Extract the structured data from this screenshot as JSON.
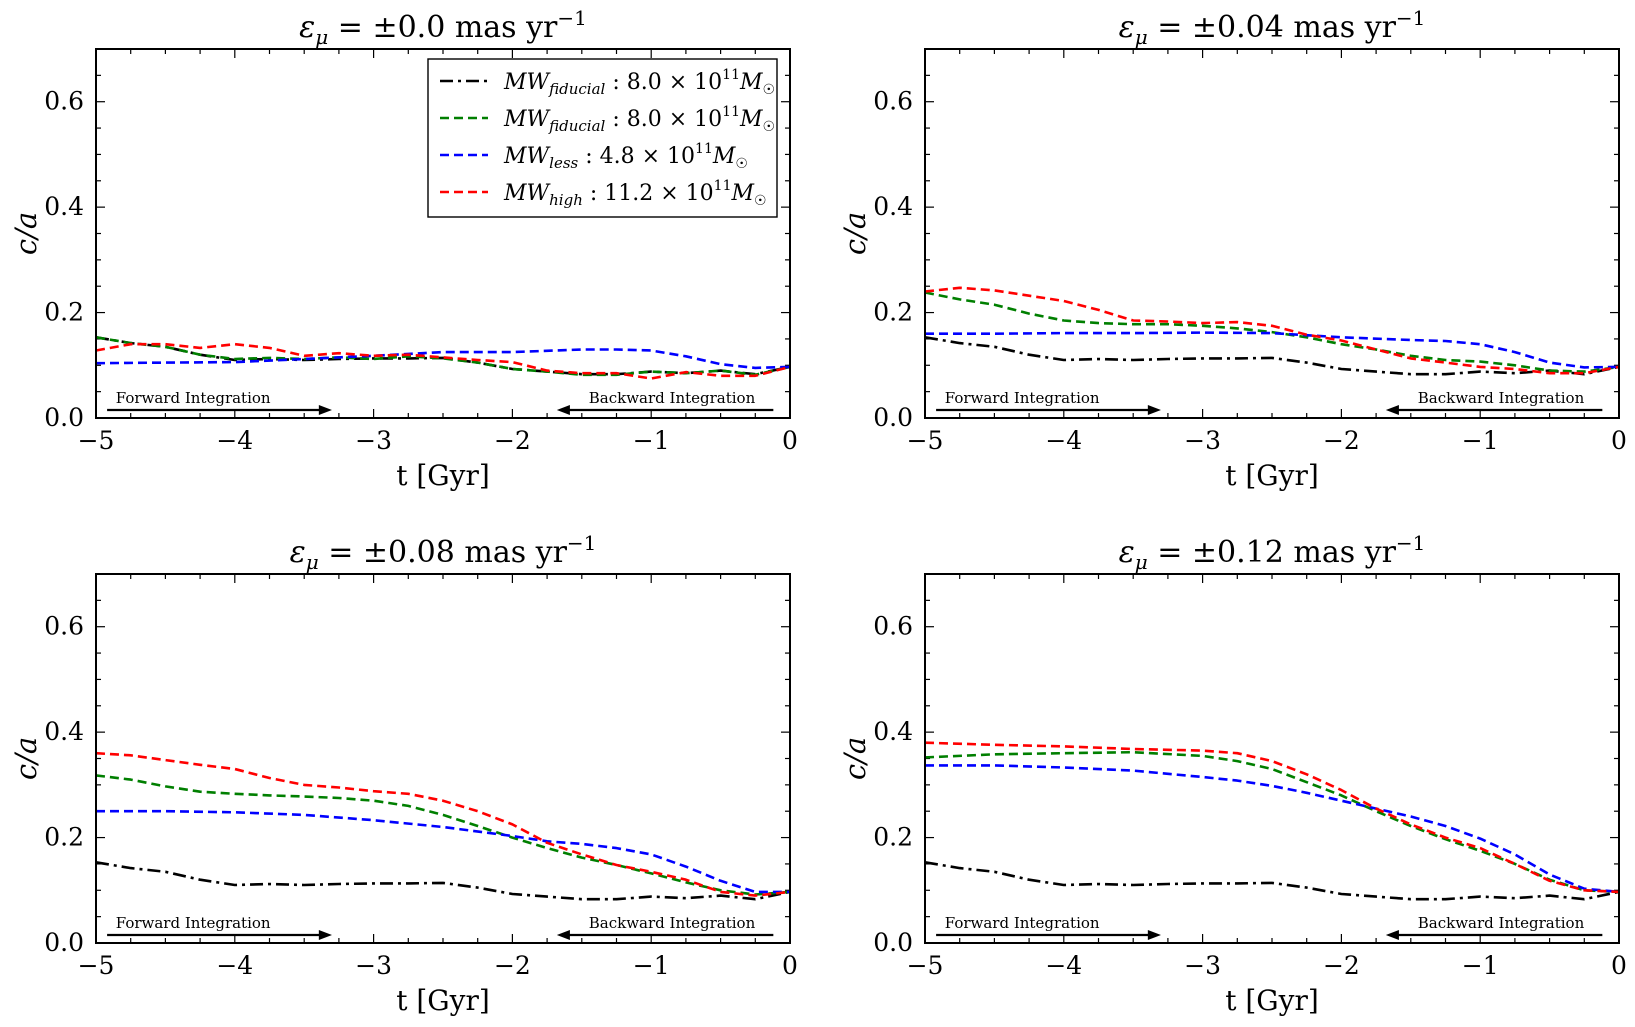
{
  "figure": {
    "xlabel": "t [Gyr]",
    "ylabel": "c/a",
    "legend": [
      {
        "label": "MWfiducial : 8.0 × 10¹¹ M☉",
        "main": "MW",
        "sub": "fiducial",
        "value": ": 8.0 × 10",
        "exp": "11",
        "unit": "M",
        "sun": "☉",
        "color": "#000000",
        "style": "dashdot"
      },
      {
        "label": "MWfiducial : 8.0 × 10¹¹ M☉",
        "main": "MW",
        "sub": "fiducial",
        "value": ": 8.0 × 10",
        "exp": "11",
        "unit": "M",
        "sun": "☉",
        "color": "#007f00",
        "style": "dashed"
      },
      {
        "label": "MWless : 4.8 × 10¹¹ M☉",
        "main": "MW",
        "sub": "less",
        "value": ": 4.8 × 10",
        "exp": "11",
        "unit": "M",
        "sun": "☉",
        "color": "#0000ff",
        "style": "dashed"
      },
      {
        "label": "MWhigh : 11.2 × 10¹¹ M☉",
        "main": "MW",
        "sub": "high",
        "value": ": 11.2 × 10",
        "exp": "11",
        "unit": "M",
        "sun": "☉",
        "color": "#ff0000",
        "style": "dashed"
      }
    ],
    "annotations": {
      "forward": "Forward Integration",
      "backward": "Backward Integration"
    }
  },
  "chart_data": [
    {
      "type": "line",
      "title": "εμ = ±0.0 mas yr⁻¹",
      "title_parts": {
        "eps": "ε",
        "mu": "μ",
        "rest": " = ±0.0 mas yr",
        "exp": "−1"
      },
      "xlabel": "t [Gyr]",
      "ylabel": "c/a",
      "xlim": [
        -5,
        0
      ],
      "ylim": [
        0,
        0.7
      ],
      "xticks": [
        -5,
        -4,
        -3,
        -2,
        -1,
        0
      ],
      "xtick_labels": [
        "−5",
        "−4",
        "−3",
        "−2",
        "−1",
        "0"
      ],
      "yticks": [
        0.0,
        0.2,
        0.4,
        0.6
      ],
      "ytick_labels": [
        "0.0",
        "0.2",
        "0.4",
        "0.6"
      ],
      "show_legend": true,
      "series": [
        {
          "name": "MWfiducial (black)",
          "color": "#000000",
          "style": "dashdot",
          "x": [
            -5,
            -4.75,
            -4.5,
            -4.25,
            -4,
            -3.75,
            -3.5,
            -3.25,
            -3,
            -2.75,
            -2.5,
            -2.25,
            -2,
            -1.75,
            -1.5,
            -1.25,
            -1,
            -0.75,
            -0.5,
            -0.25,
            0
          ],
          "y": [
            0.153,
            0.142,
            0.135,
            0.12,
            0.11,
            0.112,
            0.11,
            0.112,
            0.113,
            0.113,
            0.114,
            0.105,
            0.093,
            0.088,
            0.083,
            0.083,
            0.088,
            0.085,
            0.09,
            0.083,
            0.097
          ]
        },
        {
          "name": "MWfiducial (green)",
          "color": "#007f00",
          "style": "dashed",
          "x": [
            -5,
            -4.75,
            -4.5,
            -4.25,
            -4,
            -3.75,
            -3.5,
            -3.25,
            -3,
            -2.75,
            -2.5,
            -2.25,
            -2,
            -1.75,
            -1.5,
            -1.25,
            -1,
            -0.75,
            -0.5,
            -0.25,
            0
          ],
          "y": [
            0.153,
            0.142,
            0.135,
            0.12,
            0.112,
            0.114,
            0.112,
            0.115,
            0.112,
            0.117,
            0.113,
            0.105,
            0.093,
            0.088,
            0.082,
            0.082,
            0.088,
            0.085,
            0.09,
            0.082,
            0.097
          ]
        },
        {
          "name": "MWless",
          "color": "#0000ff",
          "style": "dashed",
          "x": [
            -5,
            -4.5,
            -4,
            -3.5,
            -3,
            -2.5,
            -2,
            -1.5,
            -1.25,
            -1,
            -0.75,
            -0.5,
            -0.25,
            0
          ],
          "y": [
            0.104,
            0.105,
            0.106,
            0.112,
            0.118,
            0.125,
            0.125,
            0.13,
            0.13,
            0.128,
            0.117,
            0.102,
            0.095,
            0.097
          ]
        },
        {
          "name": "MWhigh",
          "color": "#ff0000",
          "style": "dashed",
          "x": [
            -5,
            -4.75,
            -4.5,
            -4.25,
            -4,
            -3.75,
            -3.5,
            -3.25,
            -3,
            -2.75,
            -2.5,
            -2.25,
            -2,
            -1.75,
            -1.5,
            -1.25,
            -1,
            -0.75,
            -0.5,
            -0.25,
            0
          ],
          "y": [
            0.128,
            0.14,
            0.14,
            0.133,
            0.14,
            0.133,
            0.118,
            0.123,
            0.118,
            0.12,
            0.115,
            0.11,
            0.106,
            0.09,
            0.085,
            0.085,
            0.075,
            0.087,
            0.08,
            0.08,
            0.097
          ]
        }
      ]
    },
    {
      "type": "line",
      "title": "εμ = ±0.04 mas yr⁻¹",
      "title_parts": {
        "eps": "ε",
        "mu": "μ",
        "rest": " = ±0.04 mas yr",
        "exp": "−1"
      },
      "xlabel": "t [Gyr]",
      "ylabel": "c/a",
      "xlim": [
        -5,
        0
      ],
      "ylim": [
        0,
        0.7
      ],
      "xticks": [
        -5,
        -4,
        -3,
        -2,
        -1,
        0
      ],
      "xtick_labels": [
        "−5",
        "−4",
        "−3",
        "−2",
        "−1",
        "0"
      ],
      "yticks": [
        0.0,
        0.2,
        0.4,
        0.6
      ],
      "ytick_labels": [
        "0.0",
        "0.2",
        "0.4",
        "0.6"
      ],
      "show_legend": false,
      "series": [
        {
          "name": "MWfiducial (black)",
          "color": "#000000",
          "style": "dashdot",
          "x": [
            -5,
            -4.75,
            -4.5,
            -4.25,
            -4,
            -3.75,
            -3.5,
            -3.25,
            -3,
            -2.75,
            -2.5,
            -2.25,
            -2,
            -1.75,
            -1.5,
            -1.25,
            -1,
            -0.75,
            -0.5,
            -0.25,
            0
          ],
          "y": [
            0.153,
            0.142,
            0.135,
            0.12,
            0.11,
            0.112,
            0.11,
            0.112,
            0.113,
            0.113,
            0.114,
            0.105,
            0.093,
            0.088,
            0.083,
            0.083,
            0.088,
            0.085,
            0.09,
            0.083,
            0.097
          ]
        },
        {
          "name": "MWfiducial (green)",
          "color": "#007f00",
          "style": "dashed",
          "x": [
            -5,
            -4.75,
            -4.5,
            -4.25,
            -4,
            -3.75,
            -3.5,
            -3.25,
            -3,
            -2.75,
            -2.5,
            -2.25,
            -2,
            -1.75,
            -1.5,
            -1.25,
            -1,
            -0.75,
            -0.5,
            -0.25,
            0
          ],
          "y": [
            0.238,
            0.225,
            0.215,
            0.198,
            0.185,
            0.18,
            0.178,
            0.178,
            0.175,
            0.17,
            0.163,
            0.153,
            0.14,
            0.13,
            0.118,
            0.11,
            0.107,
            0.1,
            0.09,
            0.088,
            0.097
          ]
        },
        {
          "name": "MWless",
          "color": "#0000ff",
          "style": "dashed",
          "x": [
            -5,
            -4.5,
            -4,
            -3.5,
            -3,
            -2.5,
            -2,
            -1.5,
            -1.25,
            -1,
            -0.75,
            -0.5,
            -0.25,
            0
          ],
          "y": [
            0.16,
            0.16,
            0.161,
            0.161,
            0.162,
            0.161,
            0.153,
            0.148,
            0.146,
            0.14,
            0.125,
            0.105,
            0.096,
            0.097
          ]
        },
        {
          "name": "MWhigh",
          "color": "#ff0000",
          "style": "dashed",
          "x": [
            -5,
            -4.75,
            -4.5,
            -4.25,
            -4,
            -3.75,
            -3.5,
            -3.25,
            -3,
            -2.75,
            -2.5,
            -2.25,
            -2,
            -1.75,
            -1.5,
            -1.25,
            -1,
            -0.75,
            -0.5,
            -0.25,
            0
          ],
          "y": [
            0.24,
            0.247,
            0.242,
            0.232,
            0.222,
            0.205,
            0.185,
            0.183,
            0.18,
            0.182,
            0.175,
            0.158,
            0.147,
            0.13,
            0.113,
            0.105,
            0.097,
            0.093,
            0.085,
            0.085,
            0.097
          ]
        }
      ]
    },
    {
      "type": "line",
      "title": "εμ = ±0.08 mas yr⁻¹",
      "title_parts": {
        "eps": "ε",
        "mu": "μ",
        "rest": " = ±0.08 mas yr",
        "exp": "−1"
      },
      "xlabel": "t [Gyr]",
      "ylabel": "c/a",
      "xlim": [
        -5,
        0
      ],
      "ylim": [
        0,
        0.7
      ],
      "xticks": [
        -5,
        -4,
        -3,
        -2,
        -1,
        0
      ],
      "xtick_labels": [
        "−5",
        "−4",
        "−3",
        "−2",
        "−1",
        "0"
      ],
      "yticks": [
        0.0,
        0.2,
        0.4,
        0.6
      ],
      "ytick_labels": [
        "0.0",
        "0.2",
        "0.4",
        "0.6"
      ],
      "show_legend": false,
      "series": [
        {
          "name": "MWfiducial (black)",
          "color": "#000000",
          "style": "dashdot",
          "x": [
            -5,
            -4.75,
            -4.5,
            -4.25,
            -4,
            -3.75,
            -3.5,
            -3.25,
            -3,
            -2.75,
            -2.5,
            -2.25,
            -2,
            -1.75,
            -1.5,
            -1.25,
            -1,
            -0.75,
            -0.5,
            -0.25,
            0
          ],
          "y": [
            0.153,
            0.142,
            0.135,
            0.12,
            0.11,
            0.112,
            0.11,
            0.112,
            0.113,
            0.113,
            0.114,
            0.105,
            0.093,
            0.088,
            0.083,
            0.083,
            0.088,
            0.085,
            0.09,
            0.083,
            0.097
          ]
        },
        {
          "name": "MWfiducial (green)",
          "color": "#007f00",
          "style": "dashed",
          "x": [
            -5,
            -4.75,
            -4.5,
            -4.25,
            -4,
            -3.75,
            -3.5,
            -3.25,
            -3,
            -2.75,
            -2.5,
            -2.25,
            -2,
            -1.75,
            -1.5,
            -1.25,
            -1,
            -0.75,
            -0.5,
            -0.25,
            0
          ],
          "y": [
            0.318,
            0.31,
            0.297,
            0.287,
            0.283,
            0.28,
            0.278,
            0.275,
            0.27,
            0.26,
            0.243,
            0.222,
            0.2,
            0.18,
            0.162,
            0.148,
            0.132,
            0.115,
            0.1,
            0.092,
            0.097
          ]
        },
        {
          "name": "MWless",
          "color": "#0000ff",
          "style": "dashed",
          "x": [
            -5,
            -4.5,
            -4,
            -3.5,
            -3,
            -2.5,
            -2,
            -1.75,
            -1.5,
            -1.25,
            -1,
            -0.75,
            -0.5,
            -0.25,
            0
          ],
          "y": [
            0.25,
            0.25,
            0.248,
            0.243,
            0.233,
            0.22,
            0.203,
            0.193,
            0.188,
            0.18,
            0.168,
            0.145,
            0.118,
            0.097,
            0.097
          ]
        },
        {
          "name": "MWhigh",
          "color": "#ff0000",
          "style": "dashed",
          "x": [
            -5,
            -4.75,
            -4.5,
            -4.25,
            -4,
            -3.75,
            -3.5,
            -3.25,
            -3,
            -2.75,
            -2.5,
            -2.25,
            -2,
            -1.75,
            -1.5,
            -1.25,
            -1,
            -0.75,
            -0.5,
            -0.25,
            0
          ],
          "y": [
            0.36,
            0.356,
            0.347,
            0.338,
            0.33,
            0.313,
            0.3,
            0.295,
            0.288,
            0.283,
            0.27,
            0.25,
            0.225,
            0.19,
            0.168,
            0.148,
            0.135,
            0.12,
            0.097,
            0.09,
            0.097
          ]
        }
      ]
    },
    {
      "type": "line",
      "title": "εμ = ±0.12 mas yr⁻¹",
      "title_parts": {
        "eps": "ε",
        "mu": "μ",
        "rest": " = ±0.12 mas yr",
        "exp": "−1"
      },
      "xlabel": "t [Gyr]",
      "ylabel": "c/a",
      "xlim": [
        -5,
        0
      ],
      "ylim": [
        0,
        0.7
      ],
      "xticks": [
        -5,
        -4,
        -3,
        -2,
        -1,
        0
      ],
      "xtick_labels": [
        "−5",
        "−4",
        "−3",
        "−2",
        "−1",
        "0"
      ],
      "yticks": [
        0.0,
        0.2,
        0.4,
        0.6
      ],
      "ytick_labels": [
        "0.0",
        "0.2",
        "0.4",
        "0.6"
      ],
      "show_legend": false,
      "series": [
        {
          "name": "MWfiducial (black)",
          "color": "#000000",
          "style": "dashdot",
          "x": [
            -5,
            -4.75,
            -4.5,
            -4.25,
            -4,
            -3.75,
            -3.5,
            -3.25,
            -3,
            -2.75,
            -2.5,
            -2.25,
            -2,
            -1.75,
            -1.5,
            -1.25,
            -1,
            -0.75,
            -0.5,
            -0.25,
            0
          ],
          "y": [
            0.153,
            0.142,
            0.135,
            0.12,
            0.11,
            0.112,
            0.11,
            0.112,
            0.113,
            0.113,
            0.114,
            0.105,
            0.093,
            0.088,
            0.083,
            0.083,
            0.088,
            0.085,
            0.09,
            0.083,
            0.097
          ]
        },
        {
          "name": "MWfiducial (green)",
          "color": "#007f00",
          "style": "dashed",
          "x": [
            -5,
            -4.5,
            -4,
            -3.5,
            -3,
            -2.75,
            -2.5,
            -2.25,
            -2,
            -1.75,
            -1.5,
            -1.25,
            -1,
            -0.75,
            -0.5,
            -0.25,
            0
          ],
          "y": [
            0.352,
            0.358,
            0.36,
            0.362,
            0.355,
            0.345,
            0.33,
            0.305,
            0.28,
            0.25,
            0.222,
            0.197,
            0.175,
            0.15,
            0.12,
            0.1,
            0.097
          ]
        },
        {
          "name": "MWless",
          "color": "#0000ff",
          "style": "dashed",
          "x": [
            -5,
            -4.5,
            -4,
            -3.5,
            -3,
            -2.75,
            -2.5,
            -2.25,
            -2,
            -1.75,
            -1.5,
            -1.25,
            -1,
            -0.75,
            -0.5,
            -0.25,
            0
          ],
          "y": [
            0.337,
            0.337,
            0.333,
            0.327,
            0.315,
            0.308,
            0.298,
            0.285,
            0.27,
            0.255,
            0.24,
            0.222,
            0.198,
            0.168,
            0.13,
            0.103,
            0.097
          ]
        },
        {
          "name": "MWhigh",
          "color": "#ff0000",
          "style": "dashed",
          "x": [
            -5,
            -4.5,
            -4,
            -3.5,
            -3,
            -2.75,
            -2.5,
            -2.25,
            -2,
            -1.75,
            -1.5,
            -1.25,
            -1,
            -0.75,
            -0.5,
            -0.25,
            0
          ],
          "y": [
            0.38,
            0.376,
            0.373,
            0.368,
            0.365,
            0.36,
            0.345,
            0.32,
            0.29,
            0.255,
            0.225,
            0.2,
            0.18,
            0.15,
            0.118,
            0.1,
            0.097
          ]
        }
      ]
    }
  ]
}
